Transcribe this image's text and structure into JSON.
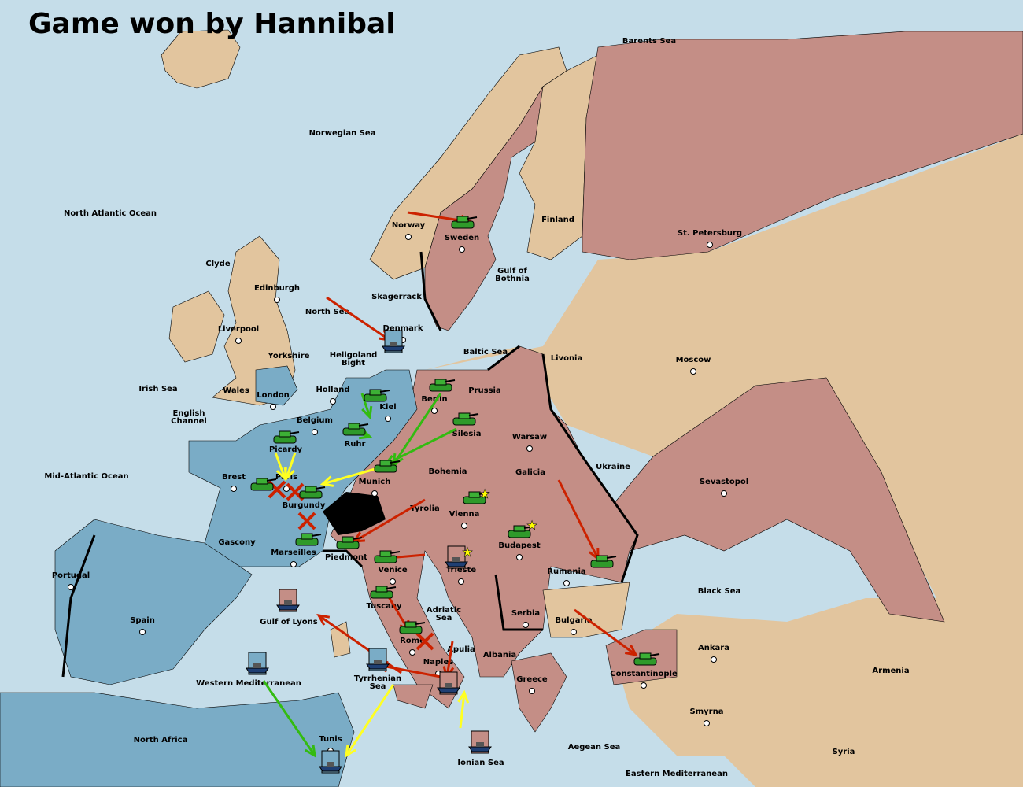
{
  "title": "Game won by Hannibal",
  "colors": {
    "sea": "#c5dde9",
    "neutral": "#e2c59e",
    "blue_power": "#7aacc6",
    "pink_power": "#c48e86",
    "move_order": "#cc2200",
    "support_green": "#33bb11",
    "support_yellow": "#ffff22",
    "impassable": "#000000"
  },
  "provinces": [
    "Barents Sea",
    "Norwegian Sea",
    "North Atlantic Ocean",
    "Clyde",
    "Edinburgh",
    "Liverpool",
    "Yorkshire",
    "Wales",
    "London",
    "Irish Sea",
    "English Channel",
    "Mid-Atlantic Ocean",
    "Brest",
    "Picardy",
    "Paris",
    "Burgundy",
    "Gascony",
    "Marseilles",
    "Belgium",
    "Holland",
    "Ruhr",
    "Kiel",
    "Berlin",
    "Prussia",
    "Silesia",
    "Munich",
    "Bohemia",
    "Galicia",
    "Warsaw",
    "Ukraine",
    "Livonia",
    "Moscow",
    "St. Petersburg",
    "Finland",
    "Sweden",
    "Norway",
    "Gulf of Bothnia",
    "Skagerrack",
    "North Sea",
    "Denmark",
    "Heligoland Bight",
    "Baltic Sea",
    "Tyrolia",
    "Vienna",
    "Budapest",
    "Trieste",
    "Rumania",
    "Sevastopol",
    "Black Sea",
    "Serbia",
    "Bulgaria",
    "Albania",
    "Greece",
    "Constantinople",
    "Ankara",
    "Armenia",
    "Smyrna",
    "Syria",
    "Aegean Sea",
    "Eastern Mediterranean",
    "Ionian Sea",
    "Apulia",
    "Naples",
    "Rome",
    "Tuscany",
    "Venice",
    "Piedmont",
    "Adriatic Sea",
    "Tyrrhenian Sea",
    "Gulf of Lyons",
    "Western Mediterranean",
    "North Africa",
    "Tunis",
    "Spain",
    "Portugal"
  ],
  "units": [
    {
      "type": "army",
      "province": "Sweden",
      "owner": "pink"
    },
    {
      "type": "fleet",
      "province": "Denmark",
      "owner": "blue"
    },
    {
      "type": "army",
      "province": "Kiel",
      "owner": "blue"
    },
    {
      "type": "army",
      "province": "Ruhr",
      "owner": "blue"
    },
    {
      "type": "army",
      "province": "Berlin",
      "owner": "pink"
    },
    {
      "type": "army",
      "province": "Silesia",
      "owner": "pink"
    },
    {
      "type": "army",
      "province": "Munich",
      "owner": "blue"
    },
    {
      "type": "army",
      "province": "Picardy",
      "owner": "blue"
    },
    {
      "type": "army",
      "province": "Brest",
      "owner": "blue"
    },
    {
      "type": "army",
      "province": "Burgundy",
      "owner": "blue"
    },
    {
      "type": "army",
      "province": "Marseilles",
      "owner": "blue"
    },
    {
      "type": "army",
      "province": "Piedmont",
      "owner": "pink"
    },
    {
      "type": "army",
      "province": "Venice",
      "owner": "pink"
    },
    {
      "type": "army",
      "province": "Vienna",
      "owner": "pink"
    },
    {
      "type": "army",
      "province": "Budapest",
      "owner": "pink"
    },
    {
      "type": "fleet",
      "province": "Trieste",
      "owner": "pink"
    },
    {
      "type": "army",
      "province": "Rumania",
      "owner": "pink"
    },
    {
      "type": "army",
      "province": "Tuscany",
      "owner": "pink"
    },
    {
      "type": "army",
      "province": "Rome",
      "owner": "pink"
    },
    {
      "type": "fleet",
      "province": "Naples",
      "owner": "pink"
    },
    {
      "type": "army",
      "province": "Constantinople",
      "owner": "pink"
    },
    {
      "type": "fleet",
      "province": "Gulf of Lyons",
      "owner": "pink"
    },
    {
      "type": "fleet",
      "province": "Western Mediterranean",
      "owner": "blue"
    },
    {
      "type": "fleet",
      "province": "Tyrrhenian Sea",
      "owner": "blue"
    },
    {
      "type": "fleet",
      "province": "Ionian Sea",
      "owner": "pink"
    },
    {
      "type": "fleet",
      "province": "Tunis",
      "owner": "blue"
    }
  ]
}
